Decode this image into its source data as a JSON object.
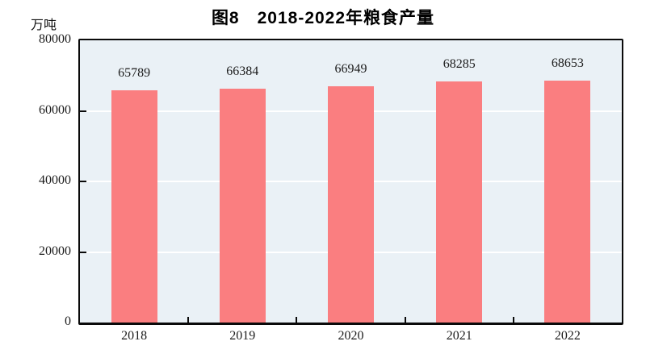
{
  "chart_data": {
    "type": "bar",
    "title": "图8　2018-2022年粮食产量",
    "unit": "万吨",
    "categories": [
      "2018",
      "2019",
      "2020",
      "2021",
      "2022"
    ],
    "values": [
      65789,
      66384,
      66949,
      68285,
      68653
    ],
    "data_labels": [
      "65789",
      "66384",
      "66949",
      "68285",
      "68653"
    ],
    "xlabel": "",
    "ylabel": "万吨",
    "ylim": [
      0,
      80000
    ],
    "yticks": [
      0,
      20000,
      40000,
      60000,
      80000
    ],
    "grid": true,
    "gridline_values": [
      20000,
      40000,
      60000
    ],
    "legend_position": "none",
    "colors": {
      "bar_fill": "#FA7E80",
      "plot_background": "#EAF1F6",
      "gridline": "#FFFFFF",
      "frame": "#0A0A0A",
      "text": "#1C1C1C"
    }
  }
}
